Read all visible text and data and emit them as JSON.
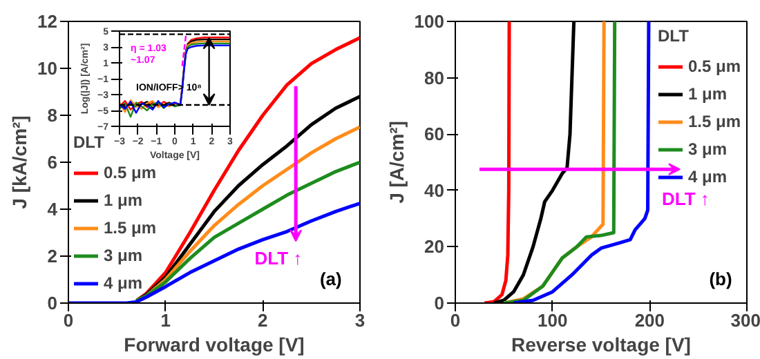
{
  "chart_data": [
    {
      "type": "line",
      "xlabel": "Forward voltage [V]",
      "ylabel": "J [kA/cm²]",
      "legend_title": "DLT",
      "legend": "bottom left",
      "grid": false,
      "xlim": [
        0,
        3
      ],
      "ylim": [
        0,
        12
      ],
      "xticks": [
        0,
        1,
        2,
        3
      ],
      "yticks": [
        0,
        2,
        4,
        6,
        8,
        10,
        12
      ],
      "annotations": [
        "DLT ↑",
        "(a)"
      ],
      "series": [
        {
          "name": "0.5 μm",
          "color": "#ff0000",
          "x": [
            0.7,
            0.8,
            1,
            1.25,
            1.5,
            1.75,
            2,
            2.25,
            2.5,
            2.75,
            3
          ],
          "values": [
            0.1,
            0.4,
            1.3,
            3.0,
            4.8,
            6.5,
            8.0,
            9.3,
            10.2,
            10.8,
            11.3
          ]
        },
        {
          "name": "1 μm",
          "color": "#000000",
          "x": [
            0.7,
            0.8,
            1,
            1.25,
            1.5,
            1.75,
            2,
            2.25,
            2.5,
            2.75,
            3
          ],
          "values": [
            0.1,
            0.35,
            1.1,
            2.5,
            3.9,
            5.0,
            5.9,
            6.7,
            7.6,
            8.3,
            8.8
          ]
        },
        {
          "name": "1.5 μm",
          "color": "#ff8c1a",
          "x": [
            0.7,
            0.8,
            1,
            1.25,
            1.5,
            1.75,
            2,
            2.25,
            2.5,
            2.75,
            3
          ],
          "values": [
            0.1,
            0.3,
            1.0,
            2.2,
            3.3,
            4.2,
            5.0,
            5.7,
            6.4,
            7.0,
            7.5
          ]
        },
        {
          "name": "3 μm",
          "color": "#1e8c1e",
          "x": [
            0.7,
            0.8,
            1,
            1.25,
            1.5,
            1.75,
            2,
            2.25,
            2.5,
            2.75,
            3
          ],
          "values": [
            0.1,
            0.3,
            0.9,
            1.9,
            2.8,
            3.4,
            4.0,
            4.6,
            5.1,
            5.6,
            6.0
          ]
        },
        {
          "name": "4 μm",
          "color": "#0000ff",
          "x": [
            0,
            0.6,
            0.7,
            0.8,
            1,
            1.25,
            1.5,
            1.75,
            2,
            2.25,
            2.5,
            2.75,
            3
          ],
          "values": [
            0,
            0,
            0.05,
            0.25,
            0.7,
            1.3,
            1.8,
            2.3,
            2.7,
            3.05,
            3.5,
            3.9,
            4.25
          ]
        }
      ]
    },
    {
      "type": "line",
      "xlabel": "Voltage [V]",
      "ylabel": "Log(|J|) [A/cm²]",
      "legend": false,
      "grid": false,
      "xlim": [
        -3,
        3
      ],
      "ylim": [
        -7,
        5
      ],
      "xticks": [
        -3,
        -2,
        -1,
        0,
        1,
        2,
        3
      ],
      "yticks": [
        -7,
        -5,
        -3,
        -1,
        1,
        3,
        5
      ],
      "annotations": [
        "η = 1.03\n~1.07",
        "ION/IOFF> 10⁸"
      ],
      "ref_lines": [
        {
          "axis": "y",
          "value": -4.3,
          "color": "#000000",
          "line_style": "dashed"
        },
        {
          "axis": "y",
          "value": 4.6,
          "color": "#000000",
          "line_style": "dashed"
        }
      ],
      "series": [
        {
          "color": "#ff0000",
          "x": [
            -3,
            -2.7,
            -2.4,
            -2.1,
            -1.8,
            -1.5,
            -1.2,
            -0.9,
            -0.6,
            -0.3,
            0,
            0.3,
            0.4,
            0.5,
            0.6,
            0.7,
            0.9,
            1.2,
            1.6,
            2.2,
            2.6,
            3
          ],
          "values": [
            -4.5,
            -3.8,
            -4.9,
            -4.2,
            -3.9,
            -4.6,
            -4.0,
            -4.4,
            -3.9,
            -4.3,
            -4.1,
            -4.2,
            -2.0,
            0.5,
            2.5,
            3.4,
            3.9,
            4.1,
            4.2,
            4.2,
            4.2,
            4.2
          ]
        },
        {
          "color": "#000000",
          "x": [
            -3,
            -2.7,
            -2.4,
            -2.1,
            -1.8,
            -1.5,
            -1.2,
            -0.9,
            -0.6,
            -0.3,
            0,
            0.3,
            0.4,
            0.5,
            0.6,
            0.7,
            0.9,
            1.2,
            1.6,
            2.2,
            2.6,
            3
          ],
          "values": [
            -4.2,
            -4.6,
            -4.0,
            -4.5,
            -4.2,
            -3.9,
            -4.7,
            -4.1,
            -4.3,
            -4.0,
            -4.4,
            -4.3,
            -2.2,
            0.3,
            2.4,
            3.3,
            3.7,
            3.9,
            3.95,
            3.95,
            3.95,
            3.95
          ]
        },
        {
          "color": "#ff8c1a",
          "x": [
            -3,
            -2.7,
            -2.4,
            -2.1,
            -1.8,
            -1.5,
            -1.2,
            -0.9,
            -0.6,
            -0.3,
            0,
            0.3,
            0.4,
            0.5,
            0.6,
            0.7,
            0.9,
            1.2,
            1.6,
            2.2,
            2.6,
            3
          ],
          "values": [
            -4.0,
            -5.2,
            -3.7,
            -4.4,
            -4.8,
            -4.1,
            -3.8,
            -4.6,
            -4.2,
            -4.5,
            -4.0,
            -4.3,
            -2.3,
            0.2,
            2.3,
            3.2,
            3.5,
            3.65,
            3.7,
            3.7,
            3.7,
            3.7
          ]
        },
        {
          "color": "#1e8c1e",
          "x": [
            -3,
            -2.7,
            -2.4,
            -2.1,
            -1.8,
            -1.5,
            -1.2,
            -0.9,
            -0.6,
            -0.3,
            0,
            0.3,
            0.4,
            0.5,
            0.6,
            0.7,
            0.9,
            1.2,
            1.6,
            2.2,
            2.6,
            3
          ],
          "values": [
            -4.8,
            -4.1,
            -5.8,
            -4.0,
            -4.5,
            -5.0,
            -4.2,
            -4.0,
            -4.7,
            -4.1,
            -4.5,
            -4.3,
            -2.4,
            0.1,
            2.2,
            3.0,
            3.3,
            3.4,
            3.45,
            3.45,
            3.45,
            3.45
          ]
        },
        {
          "color": "#0000ff",
          "x": [
            -3,
            -2.7,
            -2.4,
            -2.1,
            -1.8,
            -1.5,
            -1.2,
            -0.9,
            -0.6,
            -0.3,
            0,
            0.3,
            0.4,
            0.5,
            0.6,
            0.7,
            0.9,
            1.2,
            1.6,
            2.2,
            2.6,
            3
          ],
          "values": [
            -4.3,
            -4.8,
            -3.9,
            -5.3,
            -4.1,
            -4.4,
            -4.9,
            -3.8,
            -4.6,
            -4.2,
            -4.0,
            -4.3,
            -2.5,
            0.0,
            2.1,
            2.8,
            3.0,
            3.15,
            3.2,
            3.2,
            3.2,
            3.2
          ]
        },
        {
          "type": "line",
          "color": "#ff00ff",
          "line_style": "dashed",
          "x": [
            0.4,
            0.6
          ],
          "values": [
            0.6,
            4.4
          ]
        }
      ]
    },
    {
      "type": "line",
      "xlabel": "Reverse voltage [V]",
      "ylabel": "J [A/cm²]",
      "legend_title": "DLT",
      "legend": "top right",
      "grid": false,
      "xlim": [
        0,
        300
      ],
      "ylim": [
        0,
        100
      ],
      "xticks": [
        0,
        100,
        200,
        300
      ],
      "yticks": [
        0,
        20,
        40,
        60,
        80,
        100
      ],
      "annotations": [
        "DLT ↑",
        "(b)"
      ],
      "series": [
        {
          "name": "0.5 μm",
          "color": "#ff0000",
          "x": [
            30,
            40,
            48,
            52,
            54,
            55,
            55.5
          ],
          "values": [
            0,
            0.5,
            3,
            8,
            17,
            40,
            100
          ]
        },
        {
          "name": "1 μm",
          "color": "#000000",
          "x": [
            40,
            50,
            60,
            70,
            80,
            88,
            92,
            100,
            110,
            115,
            118,
            120,
            122
          ],
          "values": [
            0,
            1,
            4,
            10,
            20,
            30,
            36,
            40,
            46,
            48,
            60,
            80,
            100
          ]
        },
        {
          "name": "1.5 μm",
          "color": "#ff8c1a",
          "x": [
            50,
            70,
            90,
            100,
            110,
            125,
            140,
            152,
            153
          ],
          "values": [
            0,
            1.5,
            6,
            11,
            16,
            20,
            23.5,
            28,
            100
          ]
        },
        {
          "name": "3 μm",
          "color": "#1e8c1e",
          "x": [
            50,
            70,
            90,
            100,
            110,
            125,
            135,
            150,
            163,
            164
          ],
          "values": [
            0,
            1,
            6,
            11,
            16,
            20,
            23.5,
            24,
            25,
            100
          ]
        },
        {
          "name": "4 μm",
          "color": "#0000ff",
          "x": [
            60,
            80,
            100,
            120,
            140,
            150,
            170,
            180,
            185,
            195,
            198,
            199
          ],
          "values": [
            0,
            1,
            4,
            10,
            17,
            19.5,
            21.5,
            22.5,
            26,
            30,
            33,
            100
          ]
        }
      ]
    }
  ]
}
